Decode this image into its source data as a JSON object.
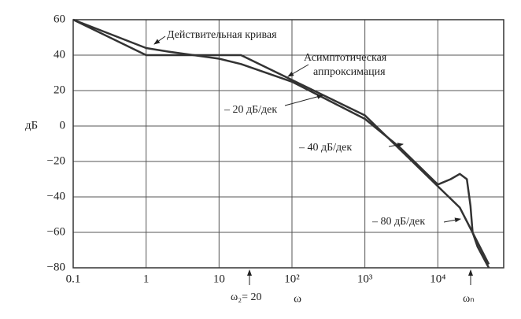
{
  "chart_data": {
    "type": "line",
    "y_label": "дБ",
    "x_label": "ω",
    "log_x": true,
    "grid": true,
    "color": "#333333",
    "xlim": [
      0.1,
      80000
    ],
    "ylim": [
      -80,
      60
    ],
    "xticks": [
      0.1,
      1,
      10,
      {
        "value": 100,
        "label": "10²"
      },
      {
        "value": 1000,
        "label": "10³"
      },
      {
        "value": 10000,
        "label": "10⁴"
      }
    ],
    "yticks": [
      60,
      40,
      20,
      0,
      {
        "value": -20,
        "label": "−20"
      },
      {
        "value": -40,
        "label": "−40"
      },
      {
        "value": -60,
        "label": "−60"
      },
      {
        "value": -80,
        "label": "−80"
      }
    ],
    "series": [
      {
        "x": [
          0.1,
          1,
          2,
          10,
          20,
          100,
          1000,
          3000,
          10000,
          15000,
          20000,
          25000,
          28000,
          30000,
          35000,
          50000
        ],
        "values": [
          60,
          44,
          42,
          38,
          35,
          25,
          4,
          -12,
          -33,
          -30,
          -27,
          -30,
          -45,
          -60,
          -68,
          -80
        ]
      },
      {
        "x": [
          0.1,
          1,
          20,
          100,
          1000,
          10000,
          20000,
          50000
        ],
        "values": [
          60,
          40,
          40,
          26,
          6,
          -34,
          -46,
          -78
        ]
      }
    ],
    "annotations": [
      "Действительная кривая",
      "Асимптотическая",
      "аппроксимация",
      "– 20 дБ/дек",
      "– 40 дБ/дек",
      "– 80 дБ/дек",
      "ω₂= 20",
      "ωₙ"
    ]
  }
}
